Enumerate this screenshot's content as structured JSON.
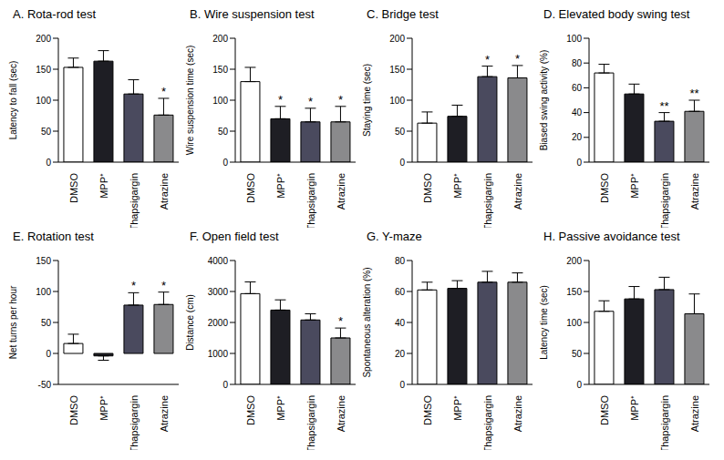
{
  "chart_data": [
    {
      "type": "bar",
      "title": "A. Rota-rod test",
      "y_label": "Latency to fall (sec)",
      "categories": [
        "DMSO",
        "MPP⁺",
        "Thapsigargin",
        "Atrazine"
      ],
      "values": [
        153,
        163,
        110,
        76
      ],
      "errors": [
        15,
        17,
        23,
        27
      ],
      "annotations": [
        null,
        null,
        null,
        "*"
      ],
      "colors": [
        "#ffffff",
        "#1e1e24",
        "#4a4a5e",
        "#8a8a8c"
      ],
      "ylim": [
        0,
        200
      ],
      "yticks": [
        0,
        50,
        100,
        150,
        200
      ]
    },
    {
      "type": "bar",
      "title": "B. Wire suspension test",
      "y_label": "Wire suspension time (sec)",
      "categories": [
        "DMSO",
        "MPP⁺",
        "Thapsigargin",
        "Atrazine"
      ],
      "values": [
        130,
        70,
        65,
        65
      ],
      "errors": [
        23,
        20,
        22,
        25
      ],
      "annotations": [
        null,
        "*",
        "*",
        "*"
      ],
      "colors": [
        "#ffffff",
        "#1e1e24",
        "#4a4a5e",
        "#8a8a8c"
      ],
      "ylim": [
        0,
        200
      ],
      "yticks": [
        0,
        50,
        100,
        150,
        200
      ]
    },
    {
      "type": "bar",
      "title": "C. Bridge test",
      "y_label": "Staying time (sec)",
      "categories": [
        "DMSO",
        "MPP⁺",
        "Thapsigargin",
        "Atrazine"
      ],
      "values": [
        63,
        74,
        138,
        136
      ],
      "errors": [
        18,
        18,
        17,
        20
      ],
      "annotations": [
        null,
        null,
        "*",
        "*"
      ],
      "colors": [
        "#ffffff",
        "#1e1e24",
        "#4a4a5e",
        "#8a8a8c"
      ],
      "ylim": [
        0,
        200
      ],
      "yticks": [
        0,
        50,
        100,
        150,
        200
      ]
    },
    {
      "type": "bar",
      "title": "D. Elevated body swing test",
      "y_label": "Biased swing activity (%)",
      "categories": [
        "DMSO",
        "MPP⁺",
        "Thapsigargin",
        "Atrazine"
      ],
      "values": [
        72,
        55,
        33,
        41
      ],
      "errors": [
        7,
        8,
        7,
        9
      ],
      "annotations": [
        null,
        null,
        "**",
        "**"
      ],
      "colors": [
        "#ffffff",
        "#1e1e24",
        "#4a4a5e",
        "#8a8a8c"
      ],
      "ylim": [
        0,
        100
      ],
      "yticks": [
        0,
        20,
        40,
        60,
        80,
        100
      ]
    },
    {
      "type": "bar",
      "title": "E. Rotation test",
      "y_label": "Net turns per hour",
      "categories": [
        "DMSO",
        "MPP⁺",
        "Thapsigargin",
        "Atrazine"
      ],
      "values": [
        16,
        -4,
        78,
        79
      ],
      "errors": [
        15,
        7,
        20,
        20
      ],
      "annotations": [
        null,
        null,
        "*",
        "*"
      ],
      "colors": [
        "#ffffff",
        "#1e1e24",
        "#4a4a5e",
        "#8a8a8c"
      ],
      "ylim": [
        -50,
        150
      ],
      "yticks": [
        -50,
        0,
        50,
        100,
        150
      ]
    },
    {
      "type": "bar",
      "title": "F. Open field test",
      "y_label": "Distance (cm)",
      "categories": [
        "DMSO",
        "MPP⁺",
        "Thapsigargin",
        "Atrazine"
      ],
      "values": [
        2930,
        2400,
        2080,
        1500
      ],
      "errors": [
        380,
        330,
        200,
        320
      ],
      "annotations": [
        null,
        null,
        null,
        "*"
      ],
      "colors": [
        "#ffffff",
        "#1e1e24",
        "#4a4a5e",
        "#8a8a8c"
      ],
      "ylim": [
        0,
        4000
      ],
      "yticks": [
        0,
        1000,
        2000,
        3000,
        4000
      ]
    },
    {
      "type": "bar",
      "title": "G. Y-maze",
      "y_label": "Spontaneous alteration (%)",
      "categories": [
        "DMSO",
        "MPP⁺",
        "Thapsigargin",
        "Atrazine"
      ],
      "values": [
        61,
        62,
        66,
        66
      ],
      "errors": [
        5,
        5,
        7,
        6
      ],
      "annotations": [
        null,
        null,
        null,
        null
      ],
      "colors": [
        "#ffffff",
        "#1e1e24",
        "#4a4a5e",
        "#8a8a8c"
      ],
      "ylim": [
        0,
        80
      ],
      "yticks": [
        0,
        20,
        40,
        60,
        80
      ]
    },
    {
      "type": "bar",
      "title": "H. Passive avoidance test",
      "y_label": "Latency time (sec)",
      "categories": [
        "DMSO",
        "MPP⁺",
        "Thapsigargin",
        "Atrazine"
      ],
      "values": [
        118,
        138,
        153,
        114
      ],
      "errors": [
        17,
        20,
        20,
        32
      ],
      "annotations": [
        null,
        null,
        null,
        null
      ],
      "colors": [
        "#ffffff",
        "#1e1e24",
        "#4a4a5e",
        "#8a8a8c"
      ],
      "ylim": [
        0,
        200
      ],
      "yticks": [
        0,
        50,
        100,
        150,
        200
      ]
    }
  ]
}
